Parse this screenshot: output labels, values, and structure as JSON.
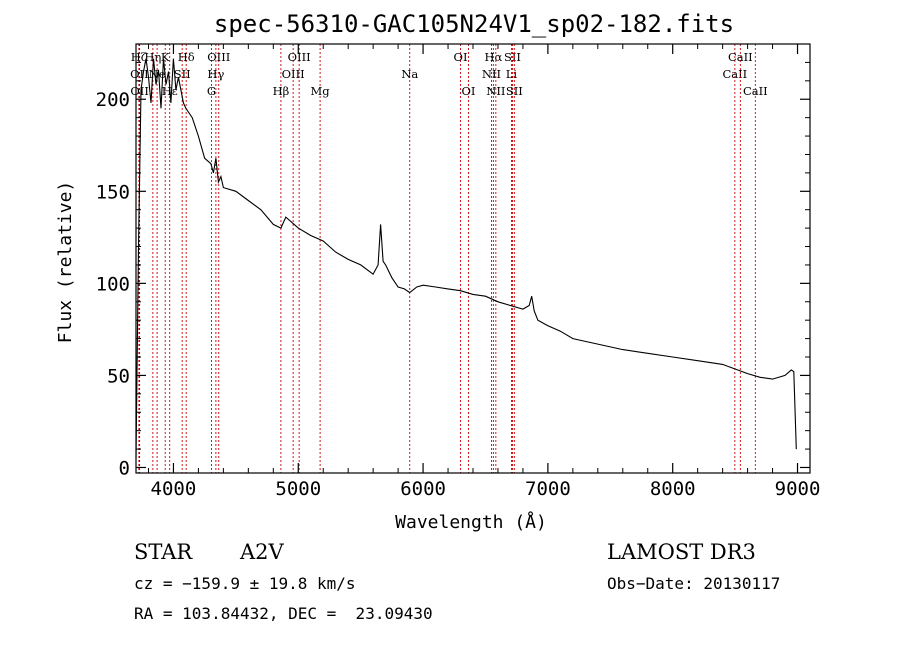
{
  "chart_data": {
    "type": "line",
    "title": "spec-56310-GAC105N24V1_sp02-182.fits",
    "xlabel": "Wavelength (Å)",
    "ylabel": "Flux (relative)",
    "xlim": [
      3700,
      9100
    ],
    "ylim": [
      -3,
      230
    ],
    "xticks": [
      "4000",
      "5000",
      "6000",
      "7000",
      "8000",
      "9000"
    ],
    "yticks": [
      "0",
      "50",
      "100",
      "150",
      "200"
    ],
    "xtick_values": [
      4000,
      5000,
      6000,
      7000,
      8000,
      9000
    ],
    "ytick_values": [
      0,
      50,
      100,
      150,
      200
    ],
    "line_color": "#000000",
    "marker_color": "#cc0000",
    "series": [
      {
        "name": "flux",
        "x": [
          3700,
          3720,
          3740,
          3760,
          3780,
          3800,
          3820,
          3840,
          3860,
          3880,
          3900,
          3920,
          3940,
          3960,
          3980,
          4000,
          4020,
          4040,
          4060,
          4080,
          4100,
          4150,
          4200,
          4250,
          4300,
          4320,
          4340,
          4360,
          4380,
          4400,
          4500,
          4600,
          4700,
          4800,
          4861,
          4900,
          5000,
          5100,
          5200,
          5300,
          5400,
          5500,
          5600,
          5640,
          5660,
          5680,
          5700,
          5750,
          5800,
          5850,
          5893,
          5950,
          6000,
          6100,
          6200,
          6300,
          6400,
          6500,
          6600,
          6700,
          6800,
          6850,
          6870,
          6890,
          6920,
          7000,
          7100,
          7200,
          7400,
          7600,
          7800,
          8000,
          8200,
          8400,
          8600,
          8700,
          8800,
          8900,
          8950,
          8970,
          8990
        ],
        "y": [
          5,
          120,
          205,
          215,
          222,
          212,
          198,
          222,
          208,
          216,
          195,
          222,
          208,
          215,
          198,
          222,
          205,
          212,
          205,
          198,
          195,
          190,
          180,
          168,
          165,
          160,
          168,
          155,
          158,
          152,
          150,
          145,
          140,
          132,
          130,
          136,
          130,
          126,
          123,
          117,
          113,
          110,
          105,
          110,
          132,
          112,
          110,
          103,
          98,
          97,
          95,
          98,
          99,
          98,
          97,
          96,
          94,
          93,
          90,
          88,
          86,
          88,
          93,
          85,
          80,
          77,
          74,
          70,
          67,
          64,
          62,
          60,
          58,
          56,
          51,
          49,
          48,
          50,
          53,
          52,
          10
        ]
      }
    ],
    "lines": [
      {
        "label": "Hζ",
        "wl": 3723,
        "row": 1
      },
      {
        "label": "OII",
        "wl": 3727,
        "row": 2
      },
      {
        "label": "OII",
        "wl": 3729,
        "row": 3
      },
      {
        "label": "Hη",
        "wl": 3835,
        "row": 1
      },
      {
        "label": "Ne",
        "wl": 3869,
        "row": 2
      },
      {
        "label": "K",
        "wl": 3934,
        "row": 1
      },
      {
        "label": "Hε",
        "wl": 3970,
        "row": 3
      },
      {
        "label": "SII",
        "wl": 4070,
        "row": 2
      },
      {
        "label": "Hδ",
        "wl": 4102,
        "row": 1
      },
      {
        "label": "G",
        "wl": 4305,
        "row": 3
      },
      {
        "label": "Hγ",
        "wl": 4340,
        "row": 2
      },
      {
        "label": "OIII",
        "wl": 4363,
        "row": 1
      },
      {
        "label": "Hβ",
        "wl": 4861,
        "row": 3
      },
      {
        "label": "OIII",
        "wl": 4959,
        "row": 2
      },
      {
        "label": "OIII",
        "wl": 5007,
        "row": 1
      },
      {
        "label": "Mg",
        "wl": 5175,
        "row": 3
      },
      {
        "label": "Na",
        "wl": 5893,
        "row": 2
      },
      {
        "label": "OI",
        "wl": 6300,
        "row": 1
      },
      {
        "label": "OI",
        "wl": 6364,
        "row": 3
      },
      {
        "label": "NII",
        "wl": 6548,
        "row": 2
      },
      {
        "label": "Hα",
        "wl": 6563,
        "row": 1
      },
      {
        "label": "NII",
        "wl": 6583,
        "row": 3
      },
      {
        "label": "Li",
        "wl": 6708,
        "row": 2
      },
      {
        "label": "SII",
        "wl": 6716,
        "row": 1
      },
      {
        "label": "SII",
        "wl": 6731,
        "row": 3
      },
      {
        "label": "CaII",
        "wl": 8498,
        "row": 2
      },
      {
        "label": "CaII",
        "wl": 8542,
        "row": 1
      },
      {
        "label": "CaII",
        "wl": 8662,
        "row": 3
      }
    ]
  },
  "info": {
    "object_class": "STAR",
    "subclass": "A2V",
    "survey": "LAMOST DR3",
    "redshift": "cz = −159.9 ± 19.8 km/s",
    "obs_date": "Obs−Date: 20130117",
    "coords": "RA = 103.84432, DEC =  23.09430"
  }
}
